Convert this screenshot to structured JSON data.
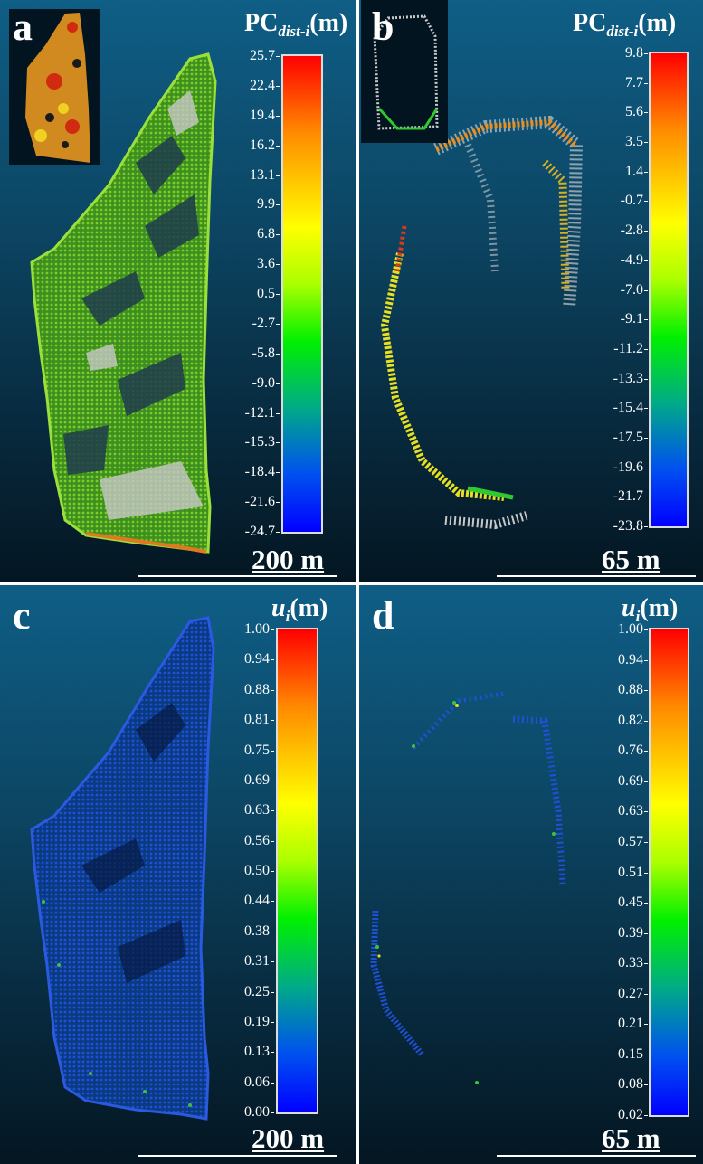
{
  "panels": {
    "a": {
      "label": "a",
      "cb_title_main": "PC",
      "cb_title_sub": "dist-i",
      "cb_title_unit": "(m)",
      "ticks": [
        "25.7",
        "22.4",
        "19.4",
        "16.2",
        "13.1",
        "9.9",
        "6.8",
        "3.6",
        "0.5",
        "-2.7",
        "-5.8",
        "-9.0",
        "-12.1",
        "-15.3",
        "-18.4",
        "-21.6",
        "-24.7"
      ],
      "scale": "200 m"
    },
    "b": {
      "label": "b",
      "cb_title_main": "PC",
      "cb_title_sub": "dist-i",
      "cb_title_unit": "(m)",
      "ticks": [
        "9.8",
        "7.7",
        "5.6",
        "3.5",
        "1.4",
        "-0.7",
        "-2.8",
        "-4.9",
        "-7.0",
        "-9.1",
        "-11.2",
        "-13.3",
        "-15.4",
        "-17.5",
        "-19.6",
        "-21.7",
        "-23.8"
      ],
      "scale": "65 m"
    },
    "c": {
      "label": "c",
      "cb_title_main": "u",
      "cb_title_sub": "i",
      "cb_title_unit": "(m)",
      "ticks": [
        "1.00",
        "0.94",
        "0.88",
        "0.81",
        "0.75",
        "0.69",
        "0.63",
        "0.56",
        "0.50",
        "0.44",
        "0.38",
        "0.31",
        "0.25",
        "0.19",
        "0.13",
        "0.06",
        "0.00"
      ],
      "scale": "200 m"
    },
    "d": {
      "label": "d",
      "cb_title_main": "u",
      "cb_title_sub": "i",
      "cb_title_unit": "(m)",
      "ticks": [
        "1.00",
        "0.94",
        "0.88",
        "0.82",
        "0.76",
        "0.69",
        "0.63",
        "0.57",
        "0.51",
        "0.45",
        "0.39",
        "0.33",
        "0.27",
        "0.21",
        "0.15",
        "0.08",
        "0.02"
      ],
      "scale": "65 m"
    }
  },
  "colors": {
    "high": "#ff0000",
    "mid": "#ffff00",
    "low": "#0000ff",
    "unmatched": "#c8c8c8"
  }
}
